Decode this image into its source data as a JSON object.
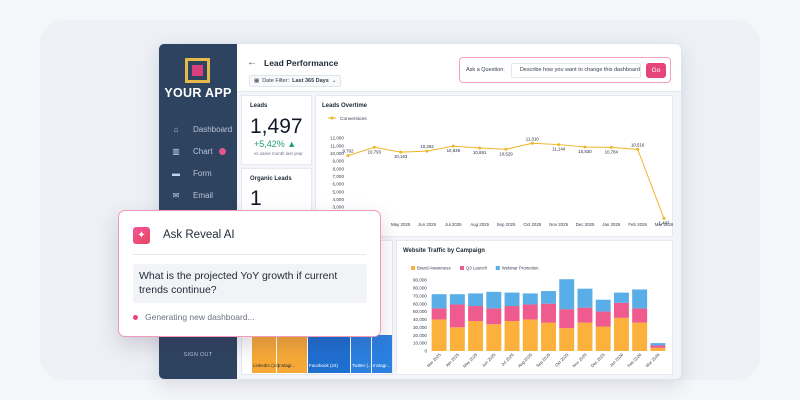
{
  "app": {
    "logo_text": "YOUR APP",
    "signout": "SIGN OUT"
  },
  "sidebar": {
    "items": [
      {
        "label": "Dashboard",
        "icon": "home-icon"
      },
      {
        "label": "Chart",
        "icon": "chart-icon",
        "badge": true
      },
      {
        "label": "Form",
        "icon": "form-icon"
      },
      {
        "label": "Email",
        "icon": "email-icon"
      }
    ]
  },
  "header": {
    "title": "Lead Performance",
    "date_filter_label": "Date Filter:",
    "date_filter_value": "Last 365 Days",
    "ask_label": "Ask a Question:",
    "ask_placeholder": "Describe how you want to change this dashboard",
    "go_label": "Go"
  },
  "kpis": {
    "leads": {
      "title": "Leads",
      "value": "1,497",
      "delta": "+5,42% ▲",
      "sub": "vs same month last year"
    },
    "organic": {
      "title": "Organic Leads",
      "value": "1"
    }
  },
  "chat": {
    "title": "Ask Reveal AI",
    "question": "What is the projected YoY growth if current trends continue?",
    "status": "Generating new dashboard..."
  },
  "treemap_labels": [
    "LinkedIn (12)",
    "Instagr...",
    "Facebook (24)",
    "Twitter (...",
    "Instagr..."
  ],
  "colors": {
    "sidebar": "#2e4360",
    "accent": "#e6457a",
    "line": "#f0b429",
    "awareness": "#fbb13c",
    "q3": "#ef5b8e",
    "webinar": "#5aaee8"
  },
  "chart_data": [
    {
      "type": "line",
      "title": "Leads Overtime",
      "legend": [
        "Conversions"
      ],
      "x": [
        "Mar 2025",
        "Apr 2025",
        "May 2025",
        "Jun 2025",
        "Jul 2025",
        "Aug 2025",
        "Sep 2025",
        "Oct 2025",
        "Nov 2025",
        "Dec 2025",
        "Jan 2026",
        "Feb 2026",
        "Mar 2026"
      ],
      "x_visible": [
        "May 2025",
        "Jun 2025",
        "Jul 2025",
        "Aug 2025",
        "Sep 2025",
        "Oct 2025",
        "Nov 2025",
        "Dec 2025",
        "Jan 2026",
        "Feb 2026",
        "Mar 2026"
      ],
      "values": [
        9702,
        10793,
        10163,
        10292,
        10939,
        10691,
        10529,
        11310,
        11144,
        10830,
        10784,
        10516,
        1497
      ],
      "data_labels": [
        "9,702",
        "10,793",
        "10,163",
        "10,292",
        "10,939",
        "10,691",
        "10,529",
        "11,310",
        "11,144",
        "10,830",
        "10,784",
        "10,516",
        "1,497"
      ],
      "yticks": [
        "12,000",
        "11,000",
        "10,000",
        "9,000",
        "8,000",
        "7,000",
        "6,000",
        "5,000",
        "4,000",
        "3,000"
      ],
      "ylim": [
        3000,
        12000
      ],
      "grid": false
    },
    {
      "type": "bar",
      "stacked": true,
      "title": "Website Traffic by Campaign",
      "categories": [
        "Mar 2025",
        "Apr 2025",
        "May 2025",
        "Jun 2025",
        "Jul 2025",
        "Aug 2025",
        "Sep 2025",
        "Oct 2025",
        "Nov 2025",
        "Dec 2025",
        "Jan 2026",
        "Feb 2026",
        "Mar 2026"
      ],
      "series": [
        {
          "name": "Brand Awareness",
          "values": [
            40000,
            30000,
            38000,
            34000,
            38000,
            40000,
            36000,
            29000,
            36000,
            31000,
            42000,
            36000,
            4000
          ]
        },
        {
          "name": "Q3 Launch",
          "values": [
            14000,
            29000,
            19000,
            20000,
            19000,
            19000,
            24000,
            24000,
            19000,
            19000,
            19000,
            18000,
            3000
          ]
        },
        {
          "name": "Webinar Promotion",
          "values": [
            18000,
            13000,
            16000,
            21000,
            17000,
            14000,
            16000,
            38000,
            24000,
            15000,
            13000,
            24000,
            3000
          ]
        }
      ],
      "yticks": [
        "90,000",
        "80,000",
        "70,000",
        "60,000",
        "50,000",
        "40,000",
        "30,000",
        "20,000",
        "10,000",
        "0"
      ],
      "ylim": [
        0,
        90000
      ],
      "legend_position": "top-left"
    }
  ]
}
